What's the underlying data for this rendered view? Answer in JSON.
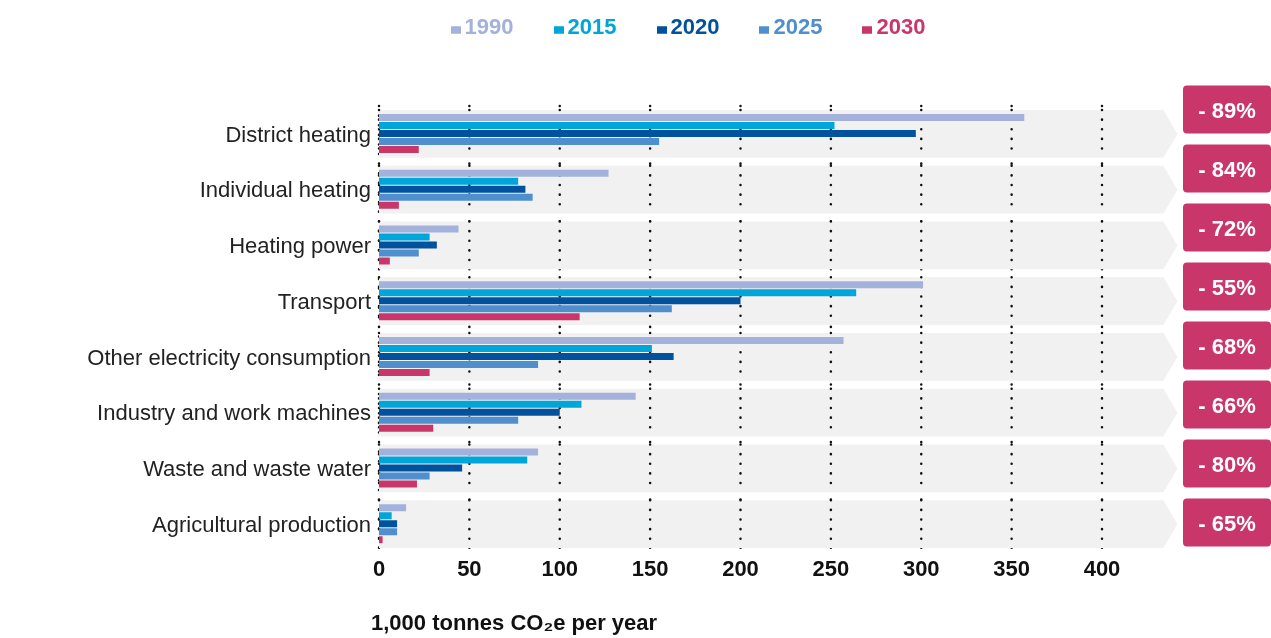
{
  "chart_data": {
    "type": "bar",
    "orientation": "horizontal",
    "xlabel": "1,000 tonnes CO₂e per year",
    "categories": [
      "District heating",
      "Individual heating",
      "Heating power",
      "Transport",
      "Other electricity consumption",
      "Industry and work machines",
      "Waste and waste water",
      "Agricultural production"
    ],
    "series": [
      {
        "name": "1990",
        "color": "#a3b1db",
        "values": [
          357,
          127,
          44,
          301,
          257,
          142,
          88,
          15
        ]
      },
      {
        "name": "2015",
        "color": "#00a6d9",
        "values": [
          252,
          77,
          28,
          264,
          151,
          112,
          82,
          7
        ]
      },
      {
        "name": "2020",
        "color": "#00519e",
        "values": [
          297,
          81,
          32,
          200,
          163,
          100,
          46,
          10
        ]
      },
      {
        "name": "2025",
        "color": "#4f8fcd",
        "values": [
          155,
          85,
          22,
          162,
          88,
          77,
          28,
          10
        ]
      },
      {
        "name": "2030",
        "color": "#c9376a",
        "values": [
          22,
          11,
          6,
          111,
          28,
          30,
          21,
          2
        ]
      }
    ],
    "bands": [
      {
        "axis": "y",
        "from": "District heating",
        "to": "District heating",
        "color": "#f1f1f1"
      },
      {
        "axis": "y",
        "from": "Individual heating",
        "to": "Individual heating",
        "color": "#f1f1f1"
      },
      {
        "axis": "y",
        "from": "Heating power",
        "to": "Heating power",
        "color": "#f1f1f1"
      },
      {
        "axis": "y",
        "from": "Transport",
        "to": "Transport",
        "color": "#f1f1f1"
      },
      {
        "axis": "y",
        "from": "Other electricity consumption",
        "to": "Other electricity consumption",
        "color": "#f1f1f1"
      },
      {
        "axis": "y",
        "from": "Industry and work machines",
        "to": "Industry and work machines",
        "color": "#f1f1f1"
      },
      {
        "axis": "y",
        "from": "Waste and waste water",
        "to": "Waste and waste water",
        "color": "#f1f1f1"
      },
      {
        "axis": "y",
        "from": "Agricultural production",
        "to": "Agricultural production",
        "color": "#f1f1f1"
      }
    ],
    "xlim": [
      0,
      400
    ],
    "xticks": [
      0,
      50,
      100,
      150,
      200,
      250,
      300,
      350,
      400
    ],
    "grid": "x",
    "legend": "top",
    "annotations": [
      "- 89%",
      "- 84%",
      "- 72%",
      "- 55%",
      "- 68%",
      "- 66%",
      "- 80%",
      "- 65%"
    ]
  }
}
